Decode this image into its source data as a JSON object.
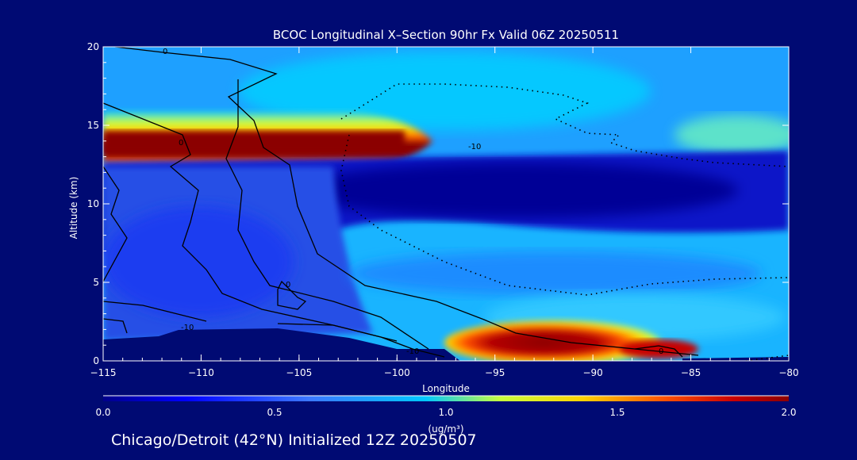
{
  "chart_data": {
    "type": "heatmap",
    "title": "BCOC Longitudinal X–Section 90hr  Fx Valid 06Z 20250511",
    "xlabel": "Longitude",
    "ylabel": "Altitude (km)",
    "xlim": [
      -115,
      -80
    ],
    "ylim": [
      0,
      20
    ],
    "x_ticks": [
      "-115",
      "-110",
      "-105",
      "-100",
      "-95",
      "-90",
      "-85",
      "-80"
    ],
    "y_ticks": [
      "0",
      "5",
      "10",
      "15",
      "20"
    ],
    "colorbar": {
      "range": [
        0.0,
        2.0
      ],
      "ticks": [
        "0.0",
        "0.5",
        "1.0",
        "1.5",
        "2.0"
      ],
      "unit": "(ug/m³)"
    },
    "max_features": [
      {
        "name": "upper-level plume",
        "longitude_range": [
          -115,
          -99
        ],
        "altitude_km": 14,
        "value": 2.0
      },
      {
        "name": "near-surface plume",
        "longitude_range": [
          -97,
          -86
        ],
        "altitude_km": 1,
        "value": 2.0
      }
    ],
    "contour_labels": [
      "0",
      "-10",
      "0",
      "-10",
      "-10",
      "0",
      "0"
    ]
  },
  "footer": "Chicago/Detroit (42°N) Initialized 12Z 20250507",
  "colors": {
    "background": "#000a73",
    "scale": [
      "#00008b",
      "#0000ff",
      "#3c78ff",
      "#00c8ff",
      "#c8ff3c",
      "#ffd200",
      "#ff5000",
      "#c80000",
      "#8b0000"
    ]
  }
}
